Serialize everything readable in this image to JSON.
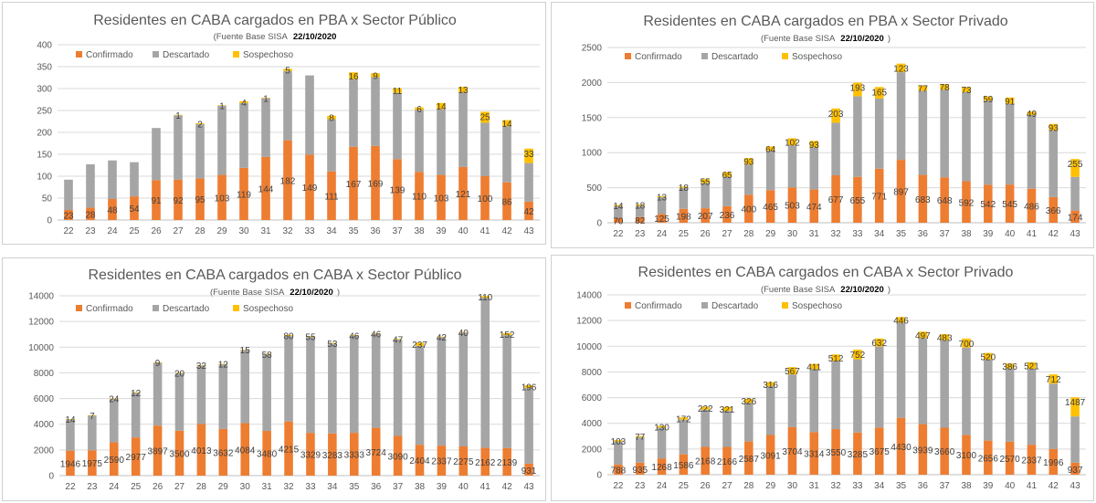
{
  "colors": {
    "confirmado": "#ED7D31",
    "descartado": "#A5A5A5",
    "sospechoso": "#FFC000"
  },
  "legend": {
    "confirmado": "Confirmado",
    "descartado": "Descartado",
    "sospechoso": "Sospechoso"
  },
  "chart_data": [
    {
      "type": "bar",
      "stacked": true,
      "title": "Residentes en CABA cargados en PBA x Sector Público",
      "subtitle": "(Fuente  Base SISA",
      "subtitle_date": "22/10/2020",
      "subtitle_close": ")",
      "categories": [
        "22",
        "23",
        "24",
        "25",
        "26",
        "27",
        "28",
        "29",
        "30",
        "31",
        "32",
        "33",
        "34",
        "35",
        "36",
        "37",
        "38",
        "39",
        "40",
        "41",
        "42",
        "43"
      ],
      "ylim": [
        0,
        400
      ],
      "yticks": [
        0,
        50,
        100,
        150,
        200,
        250,
        300,
        350,
        400
      ],
      "legend_position": "top-left",
      "series": [
        {
          "name": "Confirmado",
          "values": [
            23,
            28,
            48,
            54,
            91,
            92,
            95,
            103,
            119,
            144,
            182,
            149,
            111,
            167,
            169,
            139,
            110,
            103,
            121,
            100,
            86,
            42
          ]
        },
        {
          "name": "Descartado",
          "values": [
            69,
            99,
            88,
            78,
            119,
            147,
            124,
            158,
            148,
            134,
            158,
            181,
            119,
            154,
            157,
            151,
            141,
            150,
            170,
            122,
            128,
            88
          ]
        },
        {
          "name": "Sospechoso",
          "values": [
            0,
            0,
            0,
            0,
            0,
            1,
            2,
            1,
            4,
            1,
            5,
            0,
            8,
            16,
            9,
            11,
            6,
            14,
            13,
            25,
            14,
            33
          ]
        }
      ],
      "data_labels": {
        "Confirmado": [
          "23",
          "28",
          "48",
          "54",
          "91",
          "92",
          "95",
          "103",
          "119",
          "144",
          "182",
          "149",
          "111",
          "167",
          "169",
          "139",
          "110",
          "103",
          "121",
          "100",
          "86",
          "42"
        ],
        "Sospechoso": [
          "",
          "",
          "",
          "",
          "",
          "1",
          "2",
          "1",
          "4",
          "1",
          "5",
          "",
          "8",
          "16",
          "9",
          "11",
          "6",
          "14",
          "13",
          "25",
          "14",
          "33"
        ]
      }
    },
    {
      "type": "bar",
      "stacked": true,
      "title": "Residentes en CABA cargados en PBA x Sector Privado",
      "subtitle": "(Fuente  Base SISA",
      "subtitle_date": "22/10/2020",
      "subtitle_close": ")",
      "categories": [
        "22",
        "23",
        "24",
        "25",
        "26",
        "27",
        "28",
        "29",
        "30",
        "31",
        "32",
        "33",
        "34",
        "35",
        "36",
        "37",
        "38",
        "39",
        "40",
        "41",
        "42",
        "43"
      ],
      "ylim": [
        0,
        2500
      ],
      "yticks": [
        0,
        500,
        1000,
        1500,
        2000,
        2500
      ],
      "legend_position": "top-left",
      "series": [
        {
          "name": "Confirmado",
          "values": [
            70,
            82,
            125,
            198,
            207,
            236,
            400,
            465,
            503,
            474,
            677,
            655,
            771,
            897,
            683,
            648,
            592,
            542,
            545,
            486,
            366,
            174
          ]
        },
        {
          "name": "Descartado",
          "values": [
            170,
            160,
            240,
            300,
            360,
            420,
            430,
            560,
            600,
            600,
            750,
            1150,
            1000,
            1250,
            1200,
            1250,
            1270,
            1200,
            1150,
            1050,
            950,
            480
          ]
        },
        {
          "name": "Sospechoso",
          "values": [
            14,
            18,
            13,
            18,
            55,
            65,
            93,
            64,
            102,
            93,
            203,
            193,
            165,
            123,
            77,
            78,
            73,
            59,
            91,
            49,
            93,
            255
          ]
        }
      ],
      "data_labels": {
        "Confirmado": [
          "70",
          "82",
          "125",
          "198",
          "207",
          "236",
          "400",
          "465",
          "503",
          "474",
          "677",
          "655",
          "771",
          "897",
          "683",
          "648",
          "592",
          "542",
          "545",
          "486",
          "366",
          "174"
        ],
        "Sospechoso": [
          "14",
          "18",
          "13",
          "18",
          "55",
          "65",
          "93",
          "64",
          "102",
          "93",
          "203",
          "193",
          "165",
          "123",
          "77",
          "78",
          "73",
          "59",
          "91",
          "49",
          "93",
          "255"
        ]
      }
    },
    {
      "type": "bar",
      "stacked": true,
      "title": "Residentes en CABA cargados en CABA x Sector Público",
      "subtitle": "(Fuente  Base SISA",
      "subtitle_date": "22/10/2020",
      "subtitle_close": ")",
      "categories": [
        "22",
        "23",
        "24",
        "25",
        "26",
        "27",
        "28",
        "29",
        "30",
        "31",
        "32",
        "33",
        "34",
        "35",
        "36",
        "37",
        "38",
        "39",
        "40",
        "41",
        "42",
        "43"
      ],
      "ylim": [
        0,
        14000
      ],
      "yticks": [
        0,
        2000,
        4000,
        6000,
        8000,
        10000,
        12000,
        14000
      ],
      "legend_position": "top-left",
      "series": [
        {
          "name": "Confirmado",
          "values": [
            1946,
            1975,
            2590,
            2977,
            3897,
            3500,
            4013,
            3632,
            4084,
            3480,
            4215,
            3329,
            3283,
            3333,
            3724,
            3090,
            2404,
            2337,
            2275,
            2162,
            2139,
            931
          ]
        },
        {
          "name": "Descartado",
          "values": [
            2440,
            2720,
            3390,
            3500,
            4900,
            4480,
            4560,
            5060,
            5700,
            5950,
            6650,
            7470,
            7000,
            7550,
            7300,
            7500,
            7700,
            8450,
            8850,
            11700,
            8800,
            5900
          ]
        },
        {
          "name": "Sospechoso",
          "values": [
            14,
            7,
            24,
            12,
            9,
            20,
            32,
            12,
            15,
            58,
            80,
            55,
            53,
            46,
            46,
            47,
            237,
            42,
            40,
            110,
            152,
            196
          ]
        }
      ],
      "data_labels": {
        "Confirmado": [
          "1946",
          "1975",
          "2590",
          "2977",
          "3897",
          "3500",
          "4013",
          "3632",
          "4084",
          "3480",
          "4215",
          "3329",
          "3283",
          "3333",
          "3724",
          "3090",
          "2404",
          "2337",
          "2275",
          "2162",
          "2139",
          "931"
        ],
        "Sospechoso": [
          "14",
          "7",
          "24",
          "12",
          "9",
          "20",
          "32",
          "12",
          "15",
          "58",
          "80",
          "55",
          "53",
          "46",
          "46",
          "47",
          "237",
          "42",
          "40",
          "110",
          "152",
          "196"
        ]
      }
    },
    {
      "type": "bar",
      "stacked": true,
      "title": "Residentes en CABA cargados en CABA x Sector Privado",
      "subtitle": "(Fuente  Base SISA",
      "subtitle_date": "22/10/2020",
      "subtitle_close": ")",
      "categories": [
        "22",
        "23",
        "24",
        "25",
        "26",
        "27",
        "28",
        "29",
        "30",
        "31",
        "32",
        "33",
        "34",
        "35",
        "36",
        "37",
        "38",
        "39",
        "40",
        "41",
        "42",
        "43"
      ],
      "ylim": [
        0,
        14000
      ],
      "yticks": [
        0,
        2000,
        4000,
        6000,
        8000,
        10000,
        12000,
        14000
      ],
      "legend_position": "top-left",
      "series": [
        {
          "name": "Confirmado",
          "values": [
            788,
            935,
            1268,
            1586,
            2168,
            2166,
            2587,
            3091,
            3704,
            3314,
            3550,
            3285,
            3675,
            4430,
            3939,
            3660,
            3100,
            2656,
            2570,
            2337,
            1996,
            937
          ]
        },
        {
          "name": "Descartado",
          "values": [
            1800,
            2000,
            2400,
            2700,
            2900,
            2800,
            3000,
            3800,
            4100,
            4900,
            5300,
            5700,
            6300,
            7400,
            6700,
            6800,
            6800,
            6300,
            5700,
            5900,
            5100,
            3600
          ]
        },
        {
          "name": "Sospechoso",
          "values": [
            103,
            77,
            130,
            172,
            222,
            321,
            326,
            316,
            567,
            411,
            512,
            752,
            632,
            446,
            497,
            483,
            700,
            520,
            386,
            521,
            712,
            1487
          ]
        }
      ],
      "data_labels": {
        "Confirmado": [
          "788",
          "935",
          "1268",
          "1586",
          "2168",
          "2166",
          "2587",
          "3091",
          "3704",
          "3314",
          "3550",
          "3285",
          "3675",
          "4430",
          "3939",
          "3660",
          "3100",
          "2656",
          "2570",
          "2337",
          "1996",
          "937"
        ],
        "Sospechoso": [
          "103",
          "77",
          "130",
          "172",
          "222",
          "321",
          "326",
          "316",
          "567",
          "411",
          "512",
          "752",
          "632",
          "446",
          "497",
          "483",
          "700",
          "520",
          "386",
          "521",
          "712",
          "1487"
        ]
      }
    }
  ]
}
